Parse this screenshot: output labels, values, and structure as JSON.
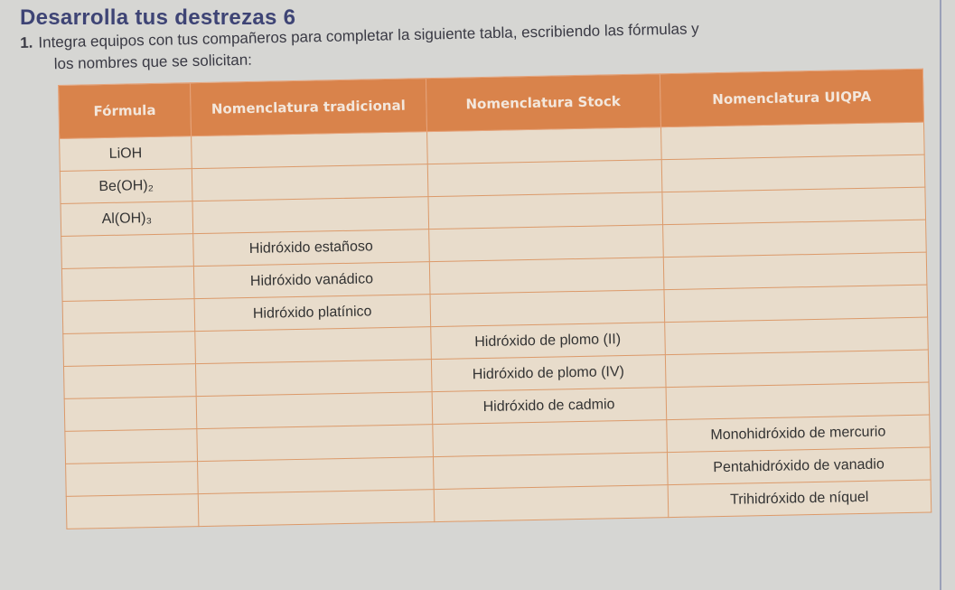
{
  "title": "Desarrolla tus destrezas 6",
  "instruction": {
    "number": "1.",
    "text": "Integra equipos con tus compañeros para completar la siguiente tabla, escribiendo las fórmulas y",
    "text_cont": "los nombres que se solicitan:"
  },
  "table": {
    "headers": [
      "Fórmula",
      "Nomenclatura tradicional",
      "Nomenclatura Stock",
      "Nomenclatura UIQPA"
    ],
    "rows": [
      [
        "LiOH",
        "",
        "",
        ""
      ],
      [
        "Be(OH)₂",
        "",
        "",
        ""
      ],
      [
        "Al(OH)₃",
        "",
        "",
        ""
      ],
      [
        "",
        "Hidróxido estañoso",
        "",
        ""
      ],
      [
        "",
        "Hidróxido vanádico",
        "",
        ""
      ],
      [
        "",
        "Hidróxido platínico",
        "",
        ""
      ],
      [
        "",
        "",
        "Hidróxido de plomo (II)",
        ""
      ],
      [
        "",
        "",
        "Hidróxido de plomo (IV)",
        ""
      ],
      [
        "",
        "",
        "Hidróxido de cadmio",
        ""
      ],
      [
        "",
        "",
        "",
        "Monohidróxido de mercurio"
      ],
      [
        "",
        "",
        "",
        "Pentahidróxido de vanadio"
      ],
      [
        "",
        "",
        "",
        "Trihidróxido de níquel"
      ]
    ]
  },
  "colors": {
    "header": "#d9834b",
    "cell": "#e8dccb",
    "title": "#3e4475"
  }
}
